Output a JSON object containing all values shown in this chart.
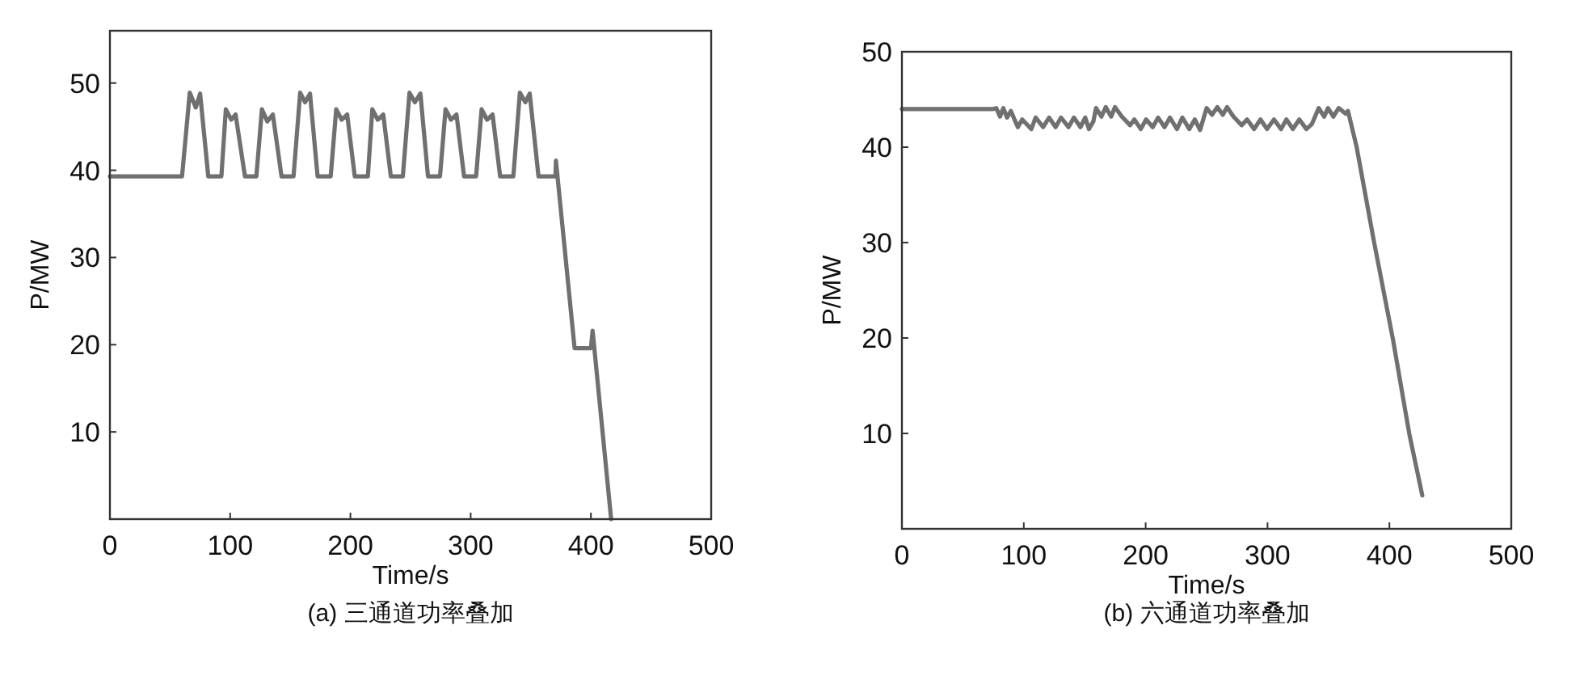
{
  "chart_data": [
    {
      "type": "line",
      "title": "(a) 三通道功率叠加",
      "xlabel": "Time/s",
      "ylabel": "P/MW",
      "xlim": [
        0,
        500
      ],
      "xticks": [
        0,
        100,
        200,
        300,
        400,
        500
      ],
      "ylim": [
        0,
        56
      ],
      "yticks": [
        10,
        20,
        30,
        40,
        50
      ],
      "grid": false,
      "marker": "none",
      "line_style": "solid",
      "series": [
        {
          "color": "#707070",
          "x": [
            0,
            60,
            66.4,
            71.4,
            75,
            81.8,
            92.7,
            96.4,
            100.9,
            104.5,
            112.3,
            121.8,
            126.4,
            130.9,
            135.5,
            142.7,
            152.7,
            158.2,
            162.3,
            166.4,
            172.7,
            183.6,
            188.2,
            192.7,
            197.3,
            203.6,
            214.5,
            218.2,
            222.7,
            227.3,
            233.6,
            243.6,
            249.1,
            253.6,
            258.2,
            264.5,
            274.5,
            279.1,
            283.6,
            288.2,
            294.5,
            304.5,
            309.1,
            313.6,
            318.2,
            324.5,
            335.5,
            340.9,
            345.5,
            349.1,
            356.4,
            370.5,
            370.9,
            386.4,
            400,
            401.4,
            416.8
          ],
          "values": [
            39.3,
            39.3,
            48.9,
            47.2,
            48.8,
            39.3,
            39.3,
            47.0,
            45.8,
            46.4,
            39.3,
            39.3,
            47.0,
            45.6,
            46.4,
            39.3,
            39.3,
            48.9,
            47.8,
            48.8,
            39.3,
            39.3,
            47.0,
            45.8,
            46.4,
            39.3,
            39.3,
            47.0,
            45.8,
            46.4,
            39.3,
            39.3,
            48.9,
            47.8,
            48.8,
            39.3,
            39.3,
            47.0,
            45.8,
            46.4,
            39.3,
            39.3,
            47.0,
            45.8,
            46.4,
            39.3,
            39.3,
            48.9,
            47.8,
            48.8,
            39.3,
            39.3,
            41.1,
            19.6,
            19.6,
            21.6,
            0
          ]
        }
      ]
    },
    {
      "type": "line",
      "title": "(b) 六通道功率叠加",
      "xlabel": "Time/s",
      "ylabel": "P/MW",
      "xlim": [
        0,
        500
      ],
      "xticks": [
        0,
        100,
        200,
        300,
        400,
        500
      ],
      "ylim": [
        0,
        50
      ],
      "yticks": [
        10,
        20,
        30,
        40,
        50
      ],
      "grid": false,
      "marker": "none",
      "line_style": "solid",
      "series": [
        {
          "color": "#707070",
          "x": [
            0,
            75,
            77.4,
            80.5,
            83.2,
            86.3,
            89.4,
            95.1,
            98.7,
            106.2,
            109.7,
            115.9,
            120.8,
            126.1,
            130.5,
            136.7,
            141.2,
            146.5,
            150.4,
            153.5,
            157.1,
            159.3,
            163.7,
            167.3,
            171.7,
            174.8,
            180.5,
            187.2,
            190.7,
            196,
            200.4,
            205.8,
            210.2,
            215.5,
            219.9,
            225.7,
            230.1,
            235.8,
            240.3,
            244.7,
            250,
            254.4,
            258.8,
            263.3,
            266.8,
            272.1,
            278.8,
            283.2,
            289,
            294.2,
            299.6,
            305.3,
            311.1,
            315.5,
            320.8,
            326.1,
            331.9,
            336.3,
            342,
            346.5,
            349.6,
            354,
            358.4,
            364.2,
            366,
            373,
            387.2,
            403,
            416.4,
            427
          ],
          "values": [
            44.0,
            44.0,
            44.1,
            43.2,
            44.1,
            43.1,
            43.8,
            42.1,
            42.9,
            41.9,
            43.1,
            42.1,
            43.1,
            42.1,
            43.1,
            42.1,
            43.1,
            42.1,
            43.1,
            41.9,
            42.7,
            44.1,
            43.2,
            44.2,
            43.2,
            44.2,
            43.2,
            42.3,
            42.9,
            41.9,
            42.9,
            42.1,
            43.1,
            42.1,
            43.1,
            41.9,
            43.1,
            41.9,
            42.9,
            41.8,
            44.1,
            43.4,
            44.2,
            43.4,
            44.2,
            43.2,
            42.3,
            42.9,
            41.9,
            42.9,
            41.9,
            42.9,
            41.9,
            42.9,
            41.9,
            42.9,
            41.9,
            42.4,
            44.1,
            43.2,
            44.1,
            43.2,
            44.1,
            43.5,
            43.8,
            40.1,
            30.2,
            19.8,
            9.9,
            3.5
          ]
        }
      ]
    }
  ]
}
